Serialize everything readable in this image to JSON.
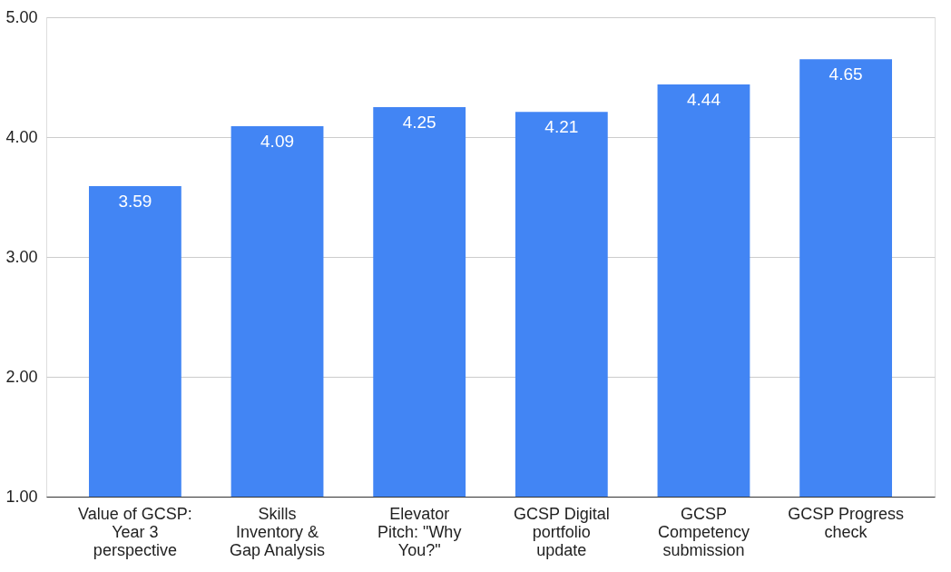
{
  "chart_data": {
    "type": "bar",
    "categories": [
      "Value of GCSP: Year 3 perspective",
      "Skills Inventory & Gap Analysis",
      "Elevator Pitch: \"Why You?\"",
      "GCSP Digital portfolio update",
      "GCSP Competency submission",
      "GCSP Progress check"
    ],
    "values": [
      3.59,
      4.09,
      4.25,
      4.21,
      4.44,
      4.65
    ],
    "color": "#4285f4",
    "ylim": [
      1,
      5
    ],
    "yticks": [
      {
        "value": 1,
        "label": "1.00"
      },
      {
        "value": 2,
        "label": "2.00"
      },
      {
        "value": 3,
        "label": "3.00"
      },
      {
        "value": 4,
        "label": "4.00"
      },
      {
        "value": 5,
        "label": "5.00"
      }
    ],
    "grid": "y",
    "data_labels": true
  }
}
